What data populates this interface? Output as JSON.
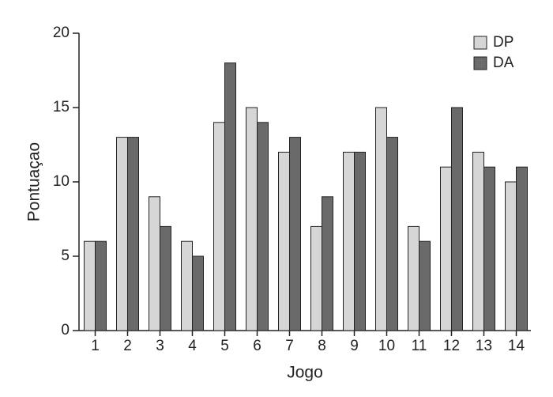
{
  "chart_data": {
    "type": "bar",
    "x_label": "Jogo",
    "y_label": "Pontuaçao",
    "categories": [
      "1",
      "2",
      "3",
      "4",
      "5",
      "6",
      "7",
      "8",
      "9",
      "10",
      "11",
      "12",
      "13",
      "14"
    ],
    "series": [
      {
        "name": "DP",
        "color": "#d6d6d6",
        "values": [
          6,
          13,
          9,
          6,
          14,
          15,
          12,
          7,
          12,
          15,
          7,
          11,
          12,
          10
        ]
      },
      {
        "name": "DA",
        "color": "#6a6a6a",
        "values": [
          6,
          13,
          7,
          5,
          18,
          14,
          13,
          9,
          12,
          13,
          6,
          15,
          11,
          11
        ]
      }
    ],
    "ylim": [
      0,
      20
    ],
    "yticks": [
      0,
      5,
      10,
      15,
      20
    ],
    "grid": false,
    "legend": "top-right"
  }
}
